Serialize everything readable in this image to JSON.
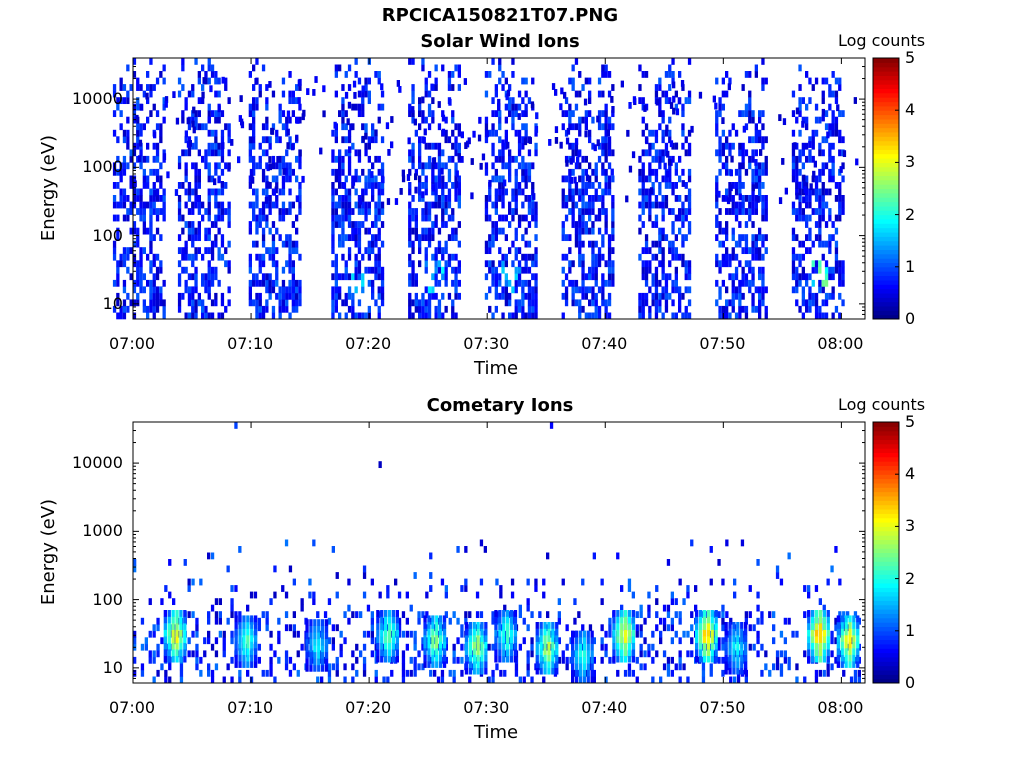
{
  "figure": {
    "title": "RPCICA150821T07.PNG"
  },
  "chart_data": [
    {
      "type": "heatmap",
      "title": "Solar Wind Ions",
      "xlabel": "Time",
      "ylabel": "Energy (eV)",
      "x_ticks": [
        "07:00",
        "07:10",
        "07:20",
        "07:30",
        "07:40",
        "07:50",
        "08:00"
      ],
      "y_ticks": [
        "10",
        "100",
        "1000",
        "10000"
      ],
      "y_scale": "log",
      "xlim": [
        "07:00",
        "08:02"
      ],
      "ylim": [
        6,
        40000
      ],
      "colorbar": {
        "label": "Log counts",
        "ticks": [
          "0",
          "1",
          "2",
          "3",
          "4",
          "5"
        ],
        "range": [
          0,
          5
        ],
        "colormap": "jet"
      },
      "pattern": {
        "description": "periodic bursts every ~6.5 min spanning full energy range",
        "bursts": [
          {
            "center": "07:00.5",
            "peak_log_counts": 1.0
          },
          {
            "center": "07:06",
            "peak_log_counts": 1.0
          },
          {
            "center": "07:12",
            "peak_log_counts": 1.2
          },
          {
            "center": "07:19",
            "peak_log_counts": 1.8
          },
          {
            "center": "07:25.5",
            "peak_log_counts": 1.9
          },
          {
            "center": "07:32",
            "peak_log_counts": 1.7
          },
          {
            "center": "07:38.5",
            "peak_log_counts": 1.0
          },
          {
            "center": "07:45",
            "peak_log_counts": 1.0
          },
          {
            "center": "07:51.5",
            "peak_log_counts": 1.0
          },
          {
            "center": "07:58",
            "peak_log_counts": 2.6
          }
        ]
      }
    },
    {
      "type": "heatmap",
      "title": "Cometary Ions",
      "xlabel": "Time",
      "ylabel": "Energy (eV)",
      "x_ticks": [
        "07:00",
        "07:10",
        "07:20",
        "07:30",
        "07:40",
        "07:50",
        "08:00"
      ],
      "y_ticks": [
        "10",
        "100",
        "1000",
        "10000"
      ],
      "y_scale": "log",
      "xlim": [
        "07:00",
        "08:02"
      ],
      "ylim": [
        6,
        40000
      ],
      "colorbar": {
        "label": "Log counts",
        "ticks": [
          "0",
          "1",
          "2",
          "3",
          "4",
          "5"
        ],
        "range": [
          0,
          5
        ],
        "colormap": "jet"
      },
      "pattern": {
        "description": "low-energy bands 10-60 eV with hot spots",
        "hotspots": [
          {
            "time": "07:03.5",
            "energy": 30,
            "log_counts": 3.6
          },
          {
            "time": "07:09.5",
            "energy": 25,
            "log_counts": 2.5
          },
          {
            "time": "07:15.5",
            "energy": 22,
            "log_counts": 2.2
          },
          {
            "time": "07:21.5",
            "energy": 30,
            "log_counts": 2.8
          },
          {
            "time": "07:25.5",
            "energy": 25,
            "log_counts": 3.0
          },
          {
            "time": "07:29",
            "energy": 20,
            "log_counts": 3.2
          },
          {
            "time": "07:31.5",
            "energy": 30,
            "log_counts": 2.6
          },
          {
            "time": "07:35",
            "energy": 20,
            "log_counts": 3.2
          },
          {
            "time": "07:38",
            "energy": 15,
            "log_counts": 2.4
          },
          {
            "time": "07:41.5",
            "energy": 30,
            "log_counts": 3.6
          },
          {
            "time": "07:48.5",
            "energy": 30,
            "log_counts": 4.0
          },
          {
            "time": "07:51",
            "energy": 20,
            "log_counts": 2.2
          },
          {
            "time": "07:58",
            "energy": 30,
            "log_counts": 4.1
          },
          {
            "time": "08:00.5",
            "energy": 25,
            "log_counts": 3.7
          }
        ]
      }
    }
  ]
}
